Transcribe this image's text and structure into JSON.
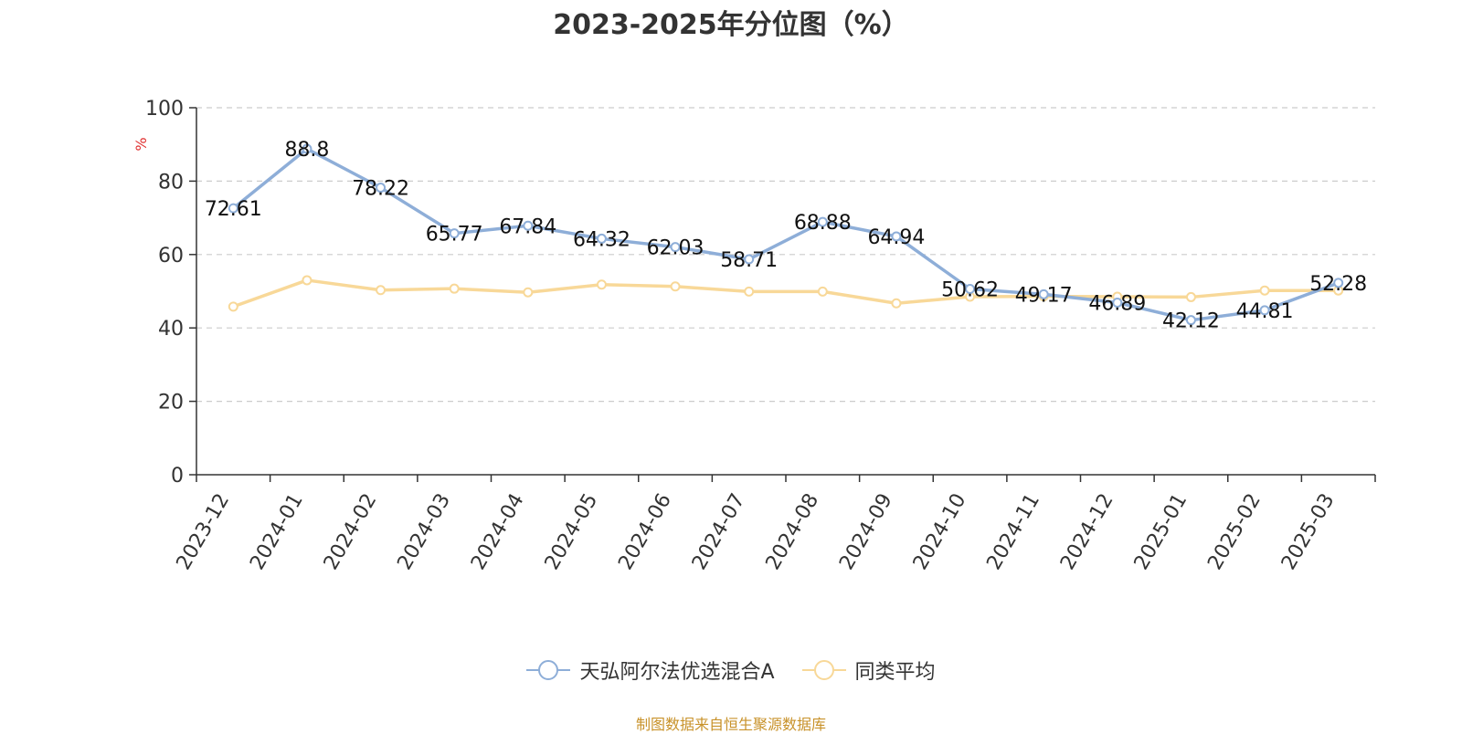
{
  "chart_data": {
    "type": "line",
    "title": "2023-2025年分位图（%）",
    "ylabel": "%",
    "ylim": [
      0,
      100
    ],
    "yticks": [
      0,
      20,
      40,
      60,
      80,
      100
    ],
    "grid": true,
    "legend_position": "bottom",
    "categories": [
      "2023-12",
      "2024-01",
      "2024-02",
      "2024-03",
      "2024-04",
      "2024-05",
      "2024-06",
      "2024-07",
      "2024-08",
      "2024-09",
      "2024-10",
      "2024-11",
      "2024-12",
      "2025-01",
      "2025-02",
      "2025-03"
    ],
    "series": [
      {
        "name": "天弘阿尔法优选混合A",
        "color": "#8eaed8",
        "show_labels": true,
        "values": [
          72.61,
          88.8,
          78.22,
          65.77,
          67.84,
          64.32,
          62.03,
          58.71,
          68.88,
          64.94,
          50.62,
          49.17,
          46.89,
          42.12,
          44.81,
          52.28
        ]
      },
      {
        "name": "同类平均",
        "color": "#f8d898",
        "show_labels": false,
        "values": [
          45.8,
          53.0,
          50.3,
          50.7,
          49.7,
          51.8,
          51.3,
          49.9,
          49.9,
          46.7,
          48.5,
          48.6,
          48.5,
          48.4,
          50.2,
          50.2
        ]
      }
    ]
  },
  "source_text": "制图数据来自恒生聚源数据库"
}
